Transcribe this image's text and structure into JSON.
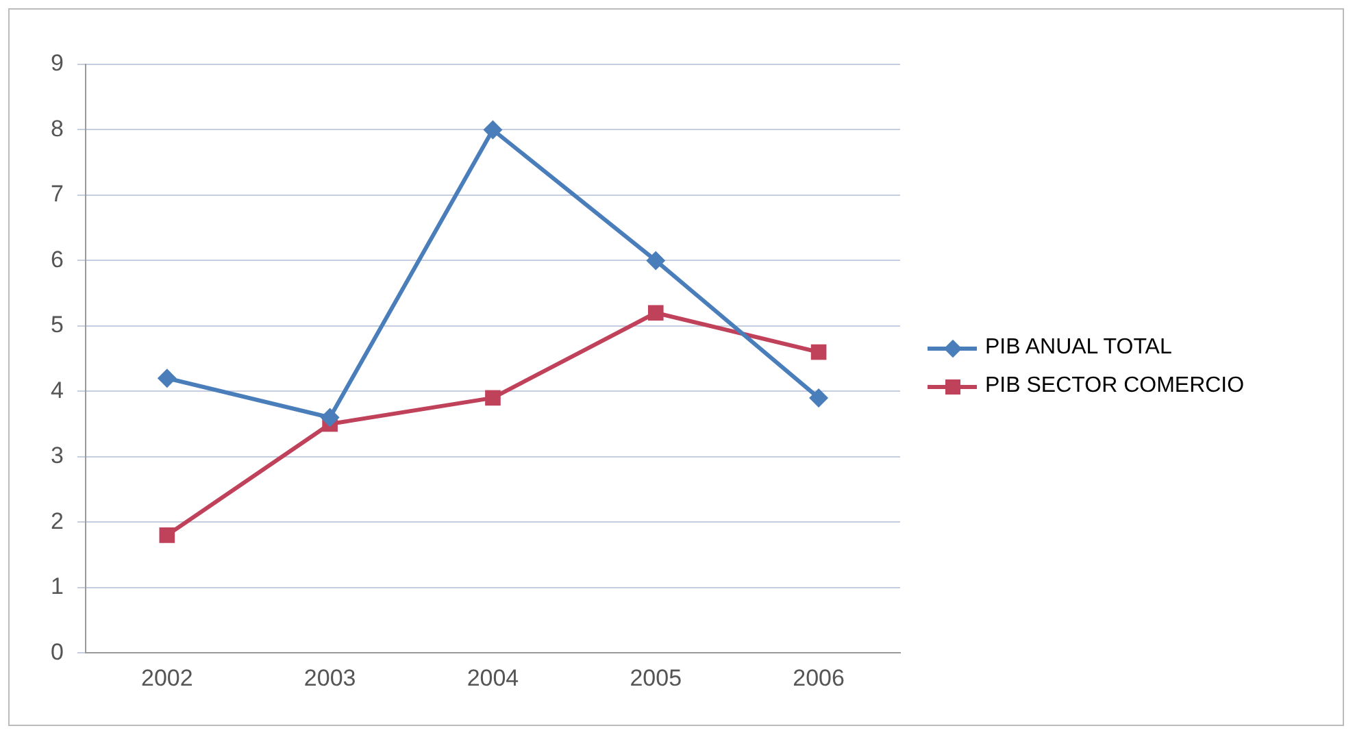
{
  "chart_data": {
    "type": "line",
    "categories": [
      "2002",
      "2003",
      "2004",
      "2005",
      "2006"
    ],
    "series": [
      {
        "name": "PIB ANUAL TOTAL",
        "color": "#4a7ebb",
        "marker": "diamond",
        "values": [
          4.2,
          3.6,
          8,
          6,
          3.9
        ]
      },
      {
        "name": "PIB SECTOR COMERCIO",
        "color": "#c0415a",
        "marker": "square",
        "values": [
          1.8,
          3.5,
          3.9,
          5.2,
          4.6
        ]
      }
    ],
    "ylim": [
      0,
      9
    ],
    "yticks": [
      0,
      1,
      2,
      3,
      4,
      5,
      6,
      7,
      8,
      9
    ],
    "grid": "y",
    "legend": "right",
    "line_style": "solid"
  }
}
